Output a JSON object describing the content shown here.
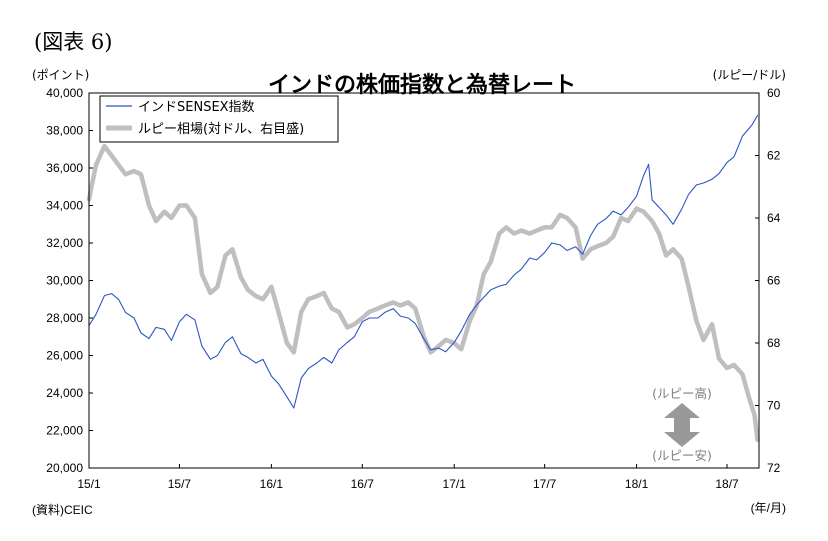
{
  "figure_label": "(図表 6)",
  "source_note": "(資料)CEIC",
  "chart_data": {
    "type": "line",
    "title": "インドの株価指数と為替レート",
    "left_axis": {
      "unit_label": "(ポイント)",
      "range": [
        20000,
        40000
      ],
      "ticks": [
        "20,000",
        "22,000",
        "24,000",
        "26,000",
        "28,000",
        "30,000",
        "32,000",
        "34,000",
        "36,000",
        "38,000",
        "40,000"
      ]
    },
    "right_axis": {
      "unit_label": "(ルピー/ドル)",
      "range": [
        60,
        72
      ],
      "inverted": true,
      "ticks": [
        "60",
        "62",
        "64",
        "66",
        "68",
        "70",
        "72"
      ]
    },
    "x_axis": {
      "unit_label": "(年/月)",
      "ticks": [
        "15/1",
        "15/7",
        "16/1",
        "16/7",
        "17/1",
        "17/7",
        "18/1",
        "18/7"
      ]
    },
    "legend": [
      "インドSENSEX指数",
      "ルピー相場(対ドル、右目盛)"
    ],
    "annotations": {
      "top": "(ルピー高)",
      "bottom": "(ルピー安)"
    },
    "series": [
      {
        "name": "インドSENSEX指数",
        "axis": "left",
        "color": "#2a55c4",
        "points": [
          [
            "2015-01",
            27600
          ],
          [
            "2015-01-15",
            28200
          ],
          [
            "2015-02",
            29200
          ],
          [
            "2015-02-15",
            29300
          ],
          [
            "2015-03",
            29000
          ],
          [
            "2015-03-15",
            28300
          ],
          [
            "2015-04",
            28000
          ],
          [
            "2015-04-15",
            27200
          ],
          [
            "2015-05",
            26900
          ],
          [
            "2015-05-15",
            27500
          ],
          [
            "2015-06",
            27400
          ],
          [
            "2015-06-15",
            26800
          ],
          [
            "2015-07",
            27800
          ],
          [
            "2015-07-15",
            28200
          ],
          [
            "2015-08",
            27900
          ],
          [
            "2015-08-15",
            26500
          ],
          [
            "2015-09",
            25800
          ],
          [
            "2015-09-15",
            26000
          ],
          [
            "2015-10",
            26700
          ],
          [
            "2015-10-15",
            27000
          ],
          [
            "2015-11",
            26100
          ],
          [
            "2015-11-15",
            25900
          ],
          [
            "2015-12",
            25600
          ],
          [
            "2015-12-15",
            25800
          ],
          [
            "2016-01",
            24900
          ],
          [
            "2016-01-15",
            24500
          ],
          [
            "2016-02",
            23800
          ],
          [
            "2016-02-15",
            23200
          ],
          [
            "2016-03",
            24800
          ],
          [
            "2016-03-15",
            25300
          ],
          [
            "2016-04",
            25600
          ],
          [
            "2016-04-15",
            25900
          ],
          [
            "2016-05",
            25600
          ],
          [
            "2016-05-15",
            26300
          ],
          [
            "2016-06",
            26700
          ],
          [
            "2016-06-15",
            27000
          ],
          [
            "2016-07",
            27800
          ],
          [
            "2016-07-15",
            28000
          ],
          [
            "2016-08",
            28000
          ],
          [
            "2016-08-15",
            28300
          ],
          [
            "2016-09",
            28500
          ],
          [
            "2016-09-15",
            28100
          ],
          [
            "2016-10",
            28000
          ],
          [
            "2016-10-15",
            27700
          ],
          [
            "2016-11",
            26900
          ],
          [
            "2016-11-15",
            26300
          ],
          [
            "2016-12",
            26400
          ],
          [
            "2016-12-15",
            26200
          ],
          [
            "2017-01",
            26700
          ],
          [
            "2017-01-15",
            27300
          ],
          [
            "2017-02",
            28200
          ],
          [
            "2017-02-15",
            28700
          ],
          [
            "2017-03",
            29100
          ],
          [
            "2017-03-15",
            29500
          ],
          [
            "2017-04",
            29700
          ],
          [
            "2017-04-15",
            29800
          ],
          [
            "2017-05",
            30300
          ],
          [
            "2017-05-15",
            30600
          ],
          [
            "2017-06",
            31200
          ],
          [
            "2017-06-15",
            31100
          ],
          [
            "2017-07",
            31500
          ],
          [
            "2017-07-15",
            32000
          ],
          [
            "2017-08",
            31900
          ],
          [
            "2017-08-15",
            31600
          ],
          [
            "2017-09",
            31800
          ],
          [
            "2017-09-15",
            31400
          ],
          [
            "2017-10",
            32400
          ],
          [
            "2017-10-15",
            33000
          ],
          [
            "2017-11",
            33300
          ],
          [
            "2017-11-15",
            33700
          ],
          [
            "2017-12",
            33500
          ],
          [
            "2017-12-15",
            33900
          ],
          [
            "2018-01",
            34500
          ],
          [
            "2018-01-15",
            35600
          ],
          [
            "2018-01-25",
            36200
          ],
          [
            "2018-02",
            34300
          ],
          [
            "2018-02-15",
            33900
          ],
          [
            "2018-03",
            33500
          ],
          [
            "2018-03-15",
            33000
          ],
          [
            "2018-04",
            33800
          ],
          [
            "2018-04-15",
            34600
          ],
          [
            "2018-05",
            35100
          ],
          [
            "2018-05-15",
            35200
          ],
          [
            "2018-06",
            35400
          ],
          [
            "2018-06-15",
            35700
          ],
          [
            "2018-07",
            36300
          ],
          [
            "2018-07-15",
            36600
          ],
          [
            "2018-08",
            37700
          ],
          [
            "2018-08-20",
            38300
          ],
          [
            "2018-08-31",
            38800
          ]
        ]
      },
      {
        "name": "ルピー相場(対ドル、右目盛)",
        "axis": "right",
        "color": "#bfbfbf",
        "points": [
          [
            "2015-01",
            63.4
          ],
          [
            "2015-01-15",
            62.3
          ],
          [
            "2015-02",
            61.7
          ],
          [
            "2015-02-15",
            62.0
          ],
          [
            "2015-03",
            62.3
          ],
          [
            "2015-03-15",
            62.6
          ],
          [
            "2015-04",
            62.5
          ],
          [
            "2015-04-15",
            62.6
          ],
          [
            "2015-05",
            63.6
          ],
          [
            "2015-05-15",
            64.1
          ],
          [
            "2015-06",
            63.8
          ],
          [
            "2015-06-15",
            64.0
          ],
          [
            "2015-07",
            63.6
          ],
          [
            "2015-07-15",
            63.6
          ],
          [
            "2015-08",
            64.0
          ],
          [
            "2015-08-15",
            65.8
          ],
          [
            "2015-09",
            66.4
          ],
          [
            "2015-09-15",
            66.2
          ],
          [
            "2015-10",
            65.2
          ],
          [
            "2015-10-15",
            65.0
          ],
          [
            "2015-11",
            65.9
          ],
          [
            "2015-11-15",
            66.3
          ],
          [
            "2015-12",
            66.5
          ],
          [
            "2015-12-15",
            66.6
          ],
          [
            "2016-01",
            66.2
          ],
          [
            "2016-01-15",
            67.0
          ],
          [
            "2016-02",
            68.0
          ],
          [
            "2016-02-15",
            68.3
          ],
          [
            "2016-03",
            67.0
          ],
          [
            "2016-03-15",
            66.6
          ],
          [
            "2016-04",
            66.5
          ],
          [
            "2016-04-15",
            66.4
          ],
          [
            "2016-05",
            66.9
          ],
          [
            "2016-05-15",
            67.0
          ],
          [
            "2016-06",
            67.5
          ],
          [
            "2016-06-15",
            67.4
          ],
          [
            "2016-07",
            67.2
          ],
          [
            "2016-07-15",
            67.0
          ],
          [
            "2016-08",
            66.9
          ],
          [
            "2016-08-15",
            66.8
          ],
          [
            "2016-09",
            66.7
          ],
          [
            "2016-09-15",
            66.8
          ],
          [
            "2016-10",
            66.7
          ],
          [
            "2016-10-15",
            66.9
          ],
          [
            "2016-11",
            67.8
          ],
          [
            "2016-11-15",
            68.3
          ],
          [
            "2016-12",
            68.1
          ],
          [
            "2016-12-15",
            67.9
          ],
          [
            "2017-01",
            68.0
          ],
          [
            "2017-01-15",
            68.2
          ],
          [
            "2017-02",
            67.3
          ],
          [
            "2017-02-15",
            66.8
          ],
          [
            "2017-03",
            65.8
          ],
          [
            "2017-03-15",
            65.4
          ],
          [
            "2017-04",
            64.5
          ],
          [
            "2017-04-15",
            64.3
          ],
          [
            "2017-05",
            64.5
          ],
          [
            "2017-05-15",
            64.4
          ],
          [
            "2017-06",
            64.5
          ],
          [
            "2017-06-15",
            64.4
          ],
          [
            "2017-07",
            64.3
          ],
          [
            "2017-07-15",
            64.3
          ],
          [
            "2017-08",
            63.9
          ],
          [
            "2017-08-15",
            64.0
          ],
          [
            "2017-09",
            64.3
          ],
          [
            "2017-09-15",
            65.3
          ],
          [
            "2017-10",
            65.0
          ],
          [
            "2017-10-15",
            64.9
          ],
          [
            "2017-11",
            64.8
          ],
          [
            "2017-11-15",
            64.6
          ],
          [
            "2017-12",
            64.0
          ],
          [
            "2017-12-15",
            64.1
          ],
          [
            "2018-01",
            63.7
          ],
          [
            "2018-01-15",
            63.8
          ],
          [
            "2018-02",
            64.1
          ],
          [
            "2018-02-15",
            64.5
          ],
          [
            "2018-03",
            65.2
          ],
          [
            "2018-03-15",
            65.0
          ],
          [
            "2018-04",
            65.3
          ],
          [
            "2018-04-15",
            66.2
          ],
          [
            "2018-05",
            67.3
          ],
          [
            "2018-05-15",
            67.9
          ],
          [
            "2018-06",
            67.4
          ],
          [
            "2018-06-15",
            68.5
          ],
          [
            "2018-07",
            68.8
          ],
          [
            "2018-07-15",
            68.7
          ],
          [
            "2018-08",
            69.0
          ],
          [
            "2018-08-15",
            69.8
          ],
          [
            "2018-08-25",
            70.3
          ],
          [
            "2018-08-31",
            71.1
          ]
        ]
      }
    ]
  }
}
